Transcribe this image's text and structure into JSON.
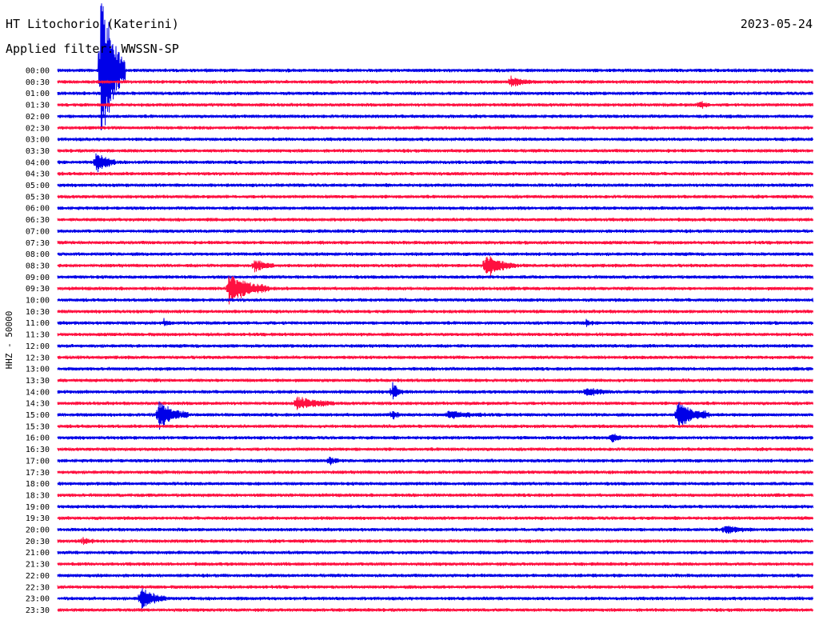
{
  "header": {
    "station": "HT Litochorio (Katerini)",
    "filter": "Applied filter: WWSSN-SP",
    "date": "2023-05-24"
  },
  "colors": {
    "odd_trace": "#0000e8",
    "even_trace": "#ff1040"
  },
  "chart_data": {
    "type": "line",
    "title": "HT Litochorio (Katerini)",
    "subtitle": "Applied filter: WWSSN-SP",
    "ylabel": "HHZ - 50000",
    "xlabel": "",
    "x_range_minutes": [
      0,
      30
    ],
    "grid": false,
    "legend": "none",
    "rows": [
      "00:00",
      "00:30",
      "01:00",
      "01:30",
      "02:00",
      "02:30",
      "03:00",
      "03:30",
      "04:00",
      "04:30",
      "05:00",
      "05:30",
      "06:00",
      "06:30",
      "07:00",
      "07:30",
      "08:00",
      "08:30",
      "09:00",
      "09:30",
      "10:00",
      "10:30",
      "11:00",
      "11:30",
      "12:00",
      "12:30",
      "13:00",
      "13:30",
      "14:00",
      "14:30",
      "15:00",
      "15:30",
      "16:00",
      "16:30",
      "17:00",
      "17:30",
      "18:00",
      "18:30",
      "19:00",
      "19:30",
      "20:00",
      "20:30",
      "21:00",
      "21:30",
      "22:00",
      "22:30",
      "23:00",
      "23:30"
    ],
    "events": [
      {
        "row": 0,
        "minute": 1.7,
        "amplitude": 12.0,
        "duration_min": 1.0
      },
      {
        "row": 1,
        "minute": 18.0,
        "amplitude": 0.6,
        "duration_min": 1.0
      },
      {
        "row": 3,
        "minute": 25.5,
        "amplitude": 0.5,
        "duration_min": 0.4
      },
      {
        "row": 8,
        "minute": 1.5,
        "amplitude": 1.6,
        "duration_min": 0.8
      },
      {
        "row": 17,
        "minute": 7.8,
        "amplitude": 0.9,
        "duration_min": 0.8
      },
      {
        "row": 17,
        "minute": 17.0,
        "amplitude": 1.6,
        "duration_min": 1.2
      },
      {
        "row": 19,
        "minute": 6.8,
        "amplitude": 2.0,
        "duration_min": 1.6
      },
      {
        "row": 22,
        "minute": 4.2,
        "amplitude": 0.5,
        "duration_min": 0.3
      },
      {
        "row": 22,
        "minute": 21.0,
        "amplitude": 0.4,
        "duration_min": 0.3
      },
      {
        "row": 28,
        "minute": 13.3,
        "amplitude": 1.2,
        "duration_min": 0.4
      },
      {
        "row": 28,
        "minute": 21.0,
        "amplitude": 0.6,
        "duration_min": 1.0
      },
      {
        "row": 29,
        "minute": 9.5,
        "amplitude": 0.9,
        "duration_min": 1.5
      },
      {
        "row": 30,
        "minute": 4.0,
        "amplitude": 1.8,
        "duration_min": 1.2
      },
      {
        "row": 30,
        "minute": 13.3,
        "amplitude": 0.7,
        "duration_min": 0.3
      },
      {
        "row": 30,
        "minute": 15.5,
        "amplitude": 0.5,
        "duration_min": 1.5
      },
      {
        "row": 30,
        "minute": 24.6,
        "amplitude": 2.0,
        "duration_min": 1.3
      },
      {
        "row": 32,
        "minute": 22.0,
        "amplitude": 0.9,
        "duration_min": 0.4
      },
      {
        "row": 34,
        "minute": 10.8,
        "amplitude": 0.5,
        "duration_min": 0.5
      },
      {
        "row": 40,
        "minute": 26.5,
        "amplitude": 0.5,
        "duration_min": 1.2
      },
      {
        "row": 41,
        "minute": 1.0,
        "amplitude": 0.4,
        "duration_min": 0.5
      },
      {
        "row": 46,
        "minute": 3.3,
        "amplitude": 1.6,
        "duration_min": 1.0
      }
    ]
  }
}
